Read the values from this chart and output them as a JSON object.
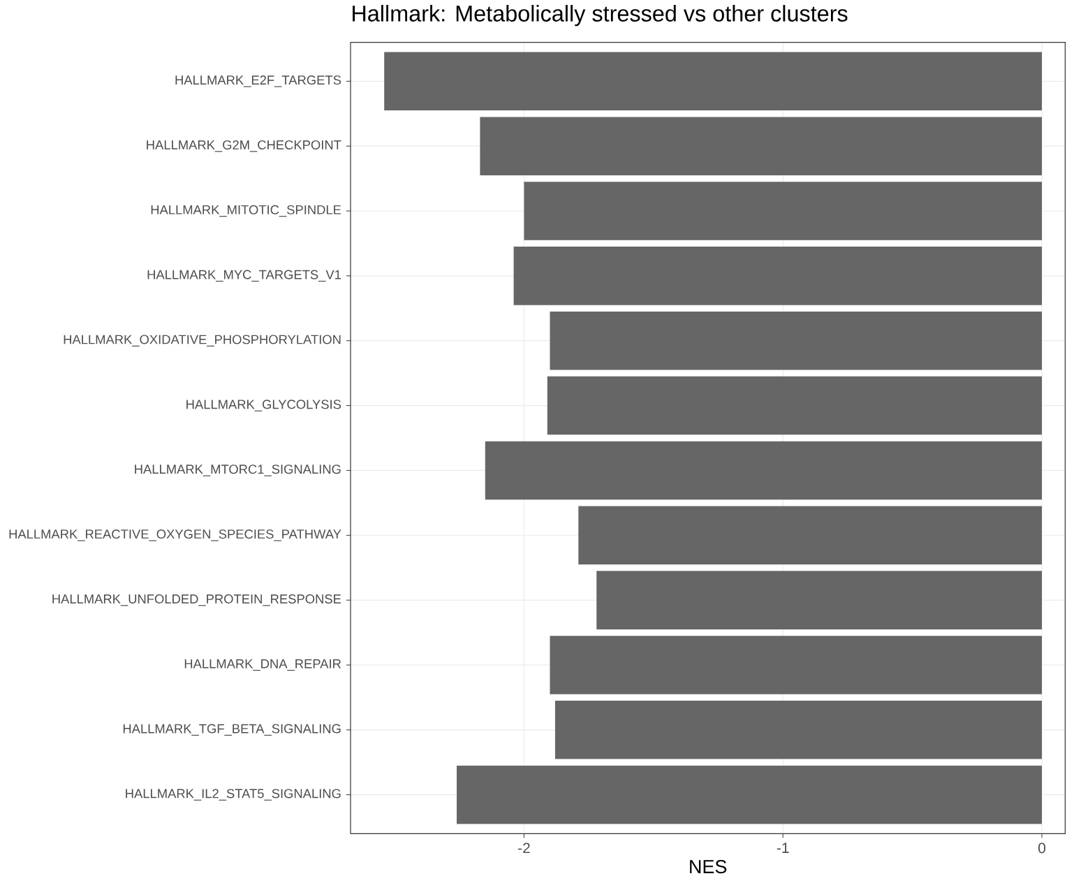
{
  "chart_data": {
    "type": "bar",
    "orientation": "horizontal",
    "title": "Hallmark: Metabolically stressed vs other clusters",
    "xlabel": "NES",
    "categories": [
      "HALLMARK_E2F_TARGETS",
      "HALLMARK_G2M_CHECKPOINT",
      "HALLMARK_MITOTIC_SPINDLE",
      "HALLMARK_MYC_TARGETS_V1",
      "HALLMARK_OXIDATIVE_PHOSPHORYLATION",
      "HALLMARK_GLYCOLYSIS",
      "HALLMARK_MTORC1_SIGNALING",
      "HALLMARK_REACTIVE_OXYGEN_SPECIES_PATHWAY",
      "HALLMARK_UNFOLDED_PROTEIN_RESPONSE",
      "HALLMARK_DNA_REPAIR",
      "HALLMARK_TGF_BETA_SIGNALING",
      "HALLMARK_IL2_STAT5_SIGNALING"
    ],
    "values": [
      -2.54,
      -2.17,
      -2.0,
      -2.04,
      -1.9,
      -1.91,
      -2.15,
      -1.79,
      -1.72,
      -1.9,
      -1.88,
      -2.26
    ],
    "color": "#666666",
    "xlim": [
      -2.67,
      0.09
    ],
    "xticks": [
      -2,
      -1,
      0
    ],
    "grid": true
  }
}
